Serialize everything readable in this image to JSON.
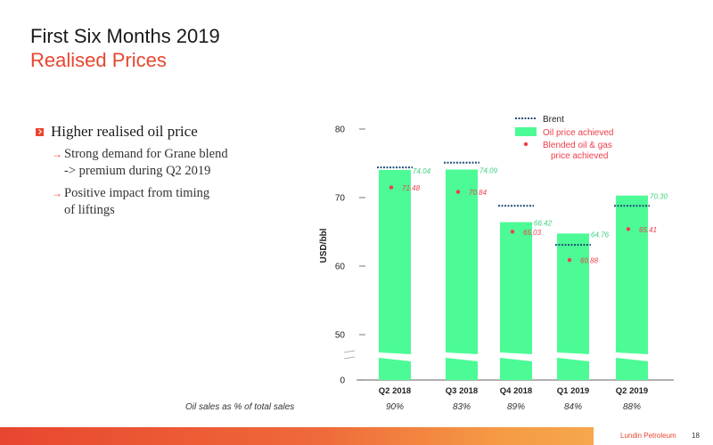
{
  "header": {
    "title": "First Six Months 2019",
    "subtitle": "Realised Prices"
  },
  "bullets": {
    "main": "Higher realised oil price",
    "subs": [
      {
        "line1": "Strong demand for Grane blend",
        "line2": "-> premium during Q2 2019"
      },
      {
        "line1": "Positive impact from timing",
        "line2": "of liftings"
      }
    ]
  },
  "footer": {
    "label": "Oil sales as % of total sales",
    "company": "Lundin Petroleum",
    "page": "18"
  },
  "colors": {
    "oil": "#4cfb96",
    "brent": "#1f4e79",
    "blended": "#ef3e4a",
    "accent": "#e8462f"
  },
  "chart_data": {
    "type": "bar",
    "ylabel": "USD/bbl",
    "yticks": [
      0,
      50,
      60,
      70,
      80
    ],
    "ylim": [
      0,
      80
    ],
    "axis_break": true,
    "categories": [
      "Q2 2018",
      "Q3 2018",
      "Q4 2018",
      "Q1 2019",
      "Q2 2019"
    ],
    "series": [
      {
        "name": "Brent",
        "values": [
          74.4,
          75.1,
          68.8,
          63.1,
          68.8
        ]
      },
      {
        "name": "Oil price achieved",
        "values": [
          74.04,
          74.09,
          66.42,
          64.76,
          70.3
        ],
        "labels": [
          "74.04",
          "74.09",
          "66.42",
          "64.76",
          "70.30"
        ]
      },
      {
        "name": "Blended oil & gas",
        "values": [
          71.48,
          70.84,
          65.03,
          60.88,
          65.41
        ],
        "labels": [
          "71.48",
          "70.84",
          "65.03",
          "60.88",
          "65.41"
        ]
      }
    ],
    "legend": {
      "brent": "Brent",
      "oil": "Oil price achieved",
      "blended1": "Blended oil & gas",
      "blended2": "price achieved"
    },
    "oil_sales_pct": [
      "90%",
      "83%",
      "89%",
      "84%",
      "88%"
    ]
  }
}
